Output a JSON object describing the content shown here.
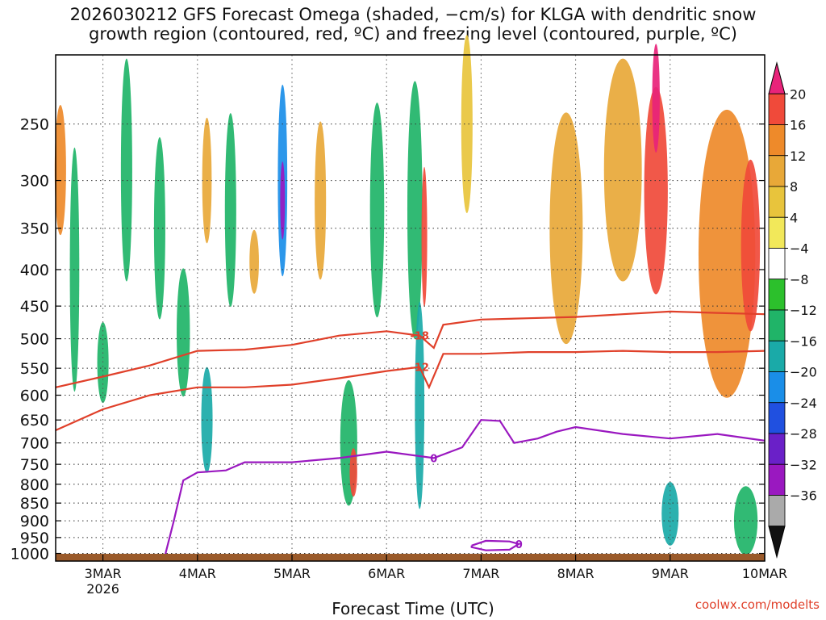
{
  "title_line1": "2026030212 GFS Forecast Omega (shaded, −cm/s) for KLGA with dendritic snow",
  "title_line2": "growth region (contoured, red, ºC) and freezing level (contoured, purple, ºC)",
  "credit": "coolwx.com/modelts",
  "chart_data": {
    "type": "heatmap",
    "title": "2026030212 GFS Forecast Omega (shaded, −cm/s) for KLGA with dendritic snow growth region (contoured, red, ºC) and freezing level (contoured, purple, ºC)",
    "xlabel": "Forecast Time (UTC)",
    "ylabel": "",
    "x_ticks": [
      {
        "day": 3,
        "label": "3MAR",
        "sub": "2026"
      },
      {
        "day": 4,
        "label": "4MAR",
        "sub": ""
      },
      {
        "day": 5,
        "label": "5MAR",
        "sub": ""
      },
      {
        "day": 6,
        "label": "6MAR",
        "sub": ""
      },
      {
        "day": 7,
        "label": "7MAR",
        "sub": ""
      },
      {
        "day": 8,
        "label": "8MAR",
        "sub": ""
      },
      {
        "day": 9,
        "label": "9MAR",
        "sub": ""
      },
      {
        "day": 10,
        "label": "10MAR",
        "sub": ""
      }
    ],
    "xlim_days": [
      2.5,
      10
    ],
    "y_ticks": [
      250,
      300,
      350,
      400,
      450,
      500,
      550,
      600,
      650,
      700,
      750,
      800,
      850,
      900,
      950,
      1000
    ],
    "ylim_hpa": [
      200,
      1025
    ],
    "y_scale": "log-pressure",
    "grid": true,
    "colorbar": {
      "labels": [
        "20",
        "16",
        "12",
        "8",
        "4",
        "−4",
        "−8",
        "−12",
        "−16",
        "−20",
        "−24",
        "−28",
        "−32",
        "−36"
      ],
      "colors": [
        "#e8237a",
        "#f04a3a",
        "#ee8a2a",
        "#e8a838",
        "#e8c43c",
        "#f2e85a",
        "#ffffff",
        "#2cc02c",
        "#20b468",
        "#1aaaa8",
        "#1a8ee8",
        "#2050e0",
        "#6a20c8",
        "#9a18c0",
        "#aaaaaa",
        "#111111"
      ]
    },
    "contours": [
      {
        "label": "-18",
        "color": "#e0402a",
        "points": [
          [
            2.5,
            585
          ],
          [
            3.0,
            565
          ],
          [
            3.5,
            545
          ],
          [
            4.0,
            520
          ],
          [
            4.5,
            518
          ],
          [
            5.0,
            510
          ],
          [
            5.5,
            495
          ],
          [
            6.0,
            488
          ],
          [
            6.35,
            495
          ],
          [
            6.5,
            515
          ],
          [
            6.6,
            478
          ],
          [
            7.0,
            470
          ],
          [
            7.5,
            468
          ],
          [
            8.0,
            466
          ],
          [
            8.5,
            462
          ],
          [
            9.0,
            458
          ],
          [
            9.5,
            460
          ],
          [
            10.0,
            462
          ]
        ]
      },
      {
        "label": "-12",
        "color": "#e0402a",
        "points": [
          [
            2.5,
            672
          ],
          [
            3.0,
            628
          ],
          [
            3.5,
            600
          ],
          [
            4.0,
            585
          ],
          [
            4.5,
            585
          ],
          [
            5.0,
            580
          ],
          [
            5.5,
            568
          ],
          [
            6.0,
            555
          ],
          [
            6.35,
            548
          ],
          [
            6.45,
            585
          ],
          [
            6.6,
            525
          ],
          [
            7.0,
            525
          ],
          [
            7.5,
            522
          ],
          [
            8.0,
            522
          ],
          [
            8.5,
            520
          ],
          [
            9.0,
            522
          ],
          [
            9.5,
            522
          ],
          [
            10.0,
            520
          ]
        ]
      },
      {
        "label": "0",
        "color": "#9a18c0",
        "points": [
          [
            3.65,
            1015
          ],
          [
            3.75,
            900
          ],
          [
            3.85,
            790
          ],
          [
            4.0,
            770
          ],
          [
            4.3,
            765
          ],
          [
            4.5,
            745
          ],
          [
            5.0,
            745
          ],
          [
            5.5,
            735
          ],
          [
            6.0,
            720
          ],
          [
            6.5,
            735
          ],
          [
            6.8,
            710
          ],
          [
            7.0,
            650
          ],
          [
            7.2,
            652
          ],
          [
            7.35,
            700
          ],
          [
            7.6,
            690
          ],
          [
            7.8,
            675
          ],
          [
            8.0,
            665
          ],
          [
            8.5,
            680
          ],
          [
            9.0,
            690
          ],
          [
            9.5,
            680
          ],
          [
            10.0,
            695
          ]
        ]
      },
      {
        "label": "0",
        "color": "#9a18c0",
        "points": [
          [
            6.9,
            975
          ],
          [
            7.05,
            960
          ],
          [
            7.3,
            962
          ],
          [
            7.4,
            970
          ],
          [
            7.3,
            988
          ],
          [
            7.05,
            990
          ],
          [
            6.9,
            980
          ],
          [
            6.9,
            975
          ]
        ]
      }
    ],
    "omega_cells": [
      {
        "x": 2.55,
        "p": 290,
        "w": 0.12,
        "dp": 120,
        "v": 12
      },
      {
        "x": 2.7,
        "p": 400,
        "w": 0.1,
        "dp": 300,
        "v": -8
      },
      {
        "x": 3.0,
        "p": 540,
        "w": 0.12,
        "dp": 140,
        "v": -8
      },
      {
        "x": 3.25,
        "p": 290,
        "w": 0.12,
        "dp": 200,
        "v": -8
      },
      {
        "x": 3.6,
        "p": 350,
        "w": 0.12,
        "dp": 200,
        "v": -8
      },
      {
        "x": 3.85,
        "p": 490,
        "w": 0.14,
        "dp": 200,
        "v": -8
      },
      {
        "x": 4.1,
        "p": 650,
        "w": 0.12,
        "dp": 220,
        "v": -12
      },
      {
        "x": 4.1,
        "p": 300,
        "w": 0.1,
        "dp": 120,
        "v": 8
      },
      {
        "x": 4.35,
        "p": 330,
        "w": 0.12,
        "dp": 200,
        "v": -8
      },
      {
        "x": 4.6,
        "p": 390,
        "w": 0.1,
        "dp": 80,
        "v": 8
      },
      {
        "x": 4.9,
        "p": 300,
        "w": 0.1,
        "dp": 180,
        "v": -16
      },
      {
        "x": 4.9,
        "p": 320,
        "w": 0.05,
        "dp": 80,
        "v": -28
      },
      {
        "x": 5.3,
        "p": 320,
        "w": 0.12,
        "dp": 160,
        "v": 8
      },
      {
        "x": 5.6,
        "p": 700,
        "w": 0.18,
        "dp": 280,
        "v": -8
      },
      {
        "x": 5.65,
        "p": 770,
        "w": 0.08,
        "dp": 120,
        "v": 16
      },
      {
        "x": 5.9,
        "p": 330,
        "w": 0.15,
        "dp": 220,
        "v": -8
      },
      {
        "x": 6.3,
        "p": 330,
        "w": 0.16,
        "dp": 260,
        "v": -8
      },
      {
        "x": 6.35,
        "p": 620,
        "w": 0.1,
        "dp": 400,
        "v": -12
      },
      {
        "x": 6.4,
        "p": 360,
        "w": 0.06,
        "dp": 160,
        "v": 16
      },
      {
        "x": 6.85,
        "p": 250,
        "w": 0.12,
        "dp": 140,
        "v": 4
      },
      {
        "x": 7.9,
        "p": 350,
        "w": 0.35,
        "dp": 250,
        "v": 8
      },
      {
        "x": 8.5,
        "p": 290,
        "w": 0.4,
        "dp": 200,
        "v": 8
      },
      {
        "x": 8.85,
        "p": 310,
        "w": 0.25,
        "dp": 200,
        "v": 16
      },
      {
        "x": 8.85,
        "p": 230,
        "w": 0.08,
        "dp": 80,
        "v": 20
      },
      {
        "x": 9.0,
        "p": 880,
        "w": 0.18,
        "dp": 180,
        "v": -12
      },
      {
        "x": 9.6,
        "p": 380,
        "w": 0.6,
        "dp": 330,
        "v": 12
      },
      {
        "x": 9.85,
        "p": 370,
        "w": 0.2,
        "dp": 200,
        "v": 16
      },
      {
        "x": 9.8,
        "p": 900,
        "w": 0.25,
        "dp": 200,
        "v": -8
      }
    ]
  }
}
